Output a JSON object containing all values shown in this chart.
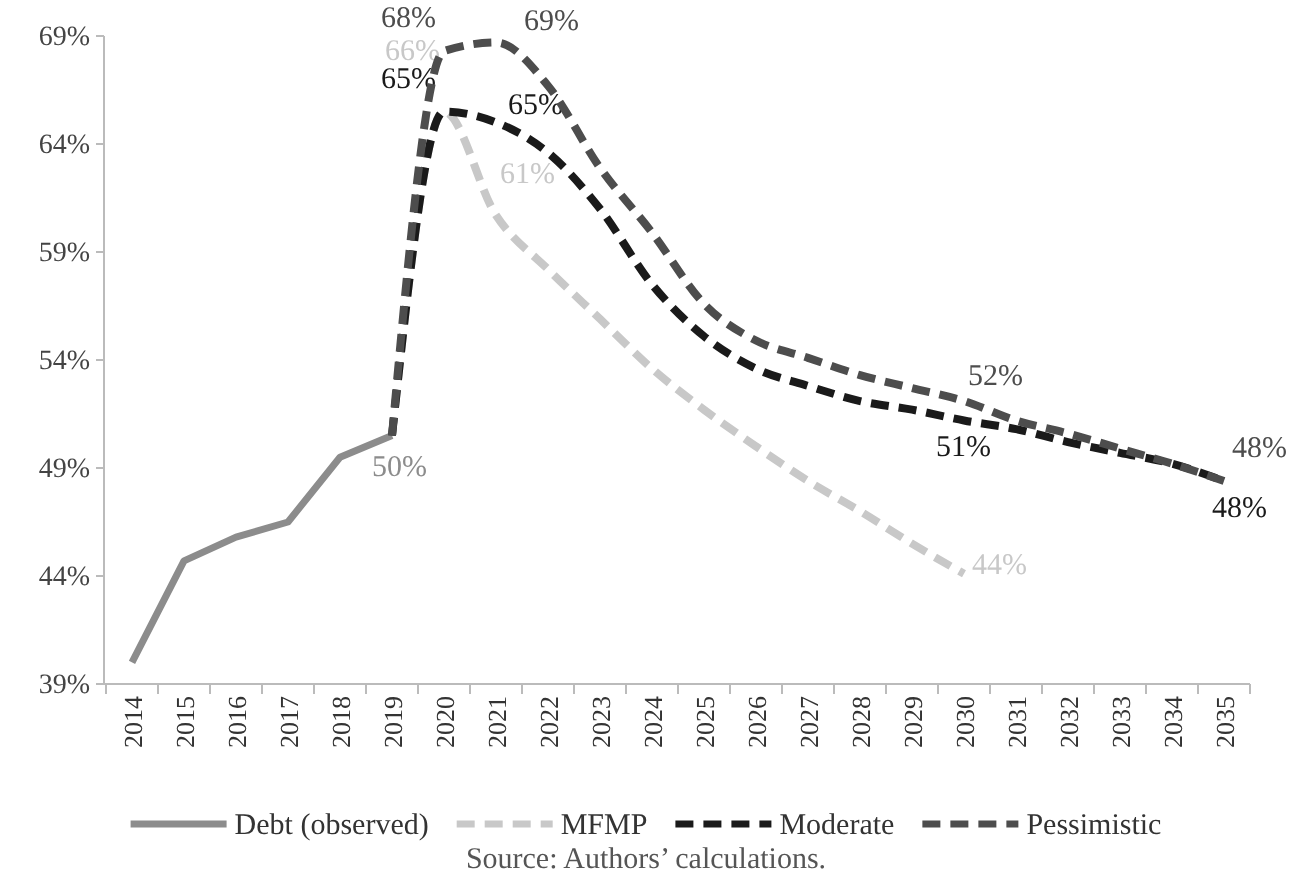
{
  "chart_data": {
    "type": "line",
    "categories": [
      "2014",
      "2015",
      "2016",
      "2017",
      "2018",
      "2019",
      "2020",
      "2021",
      "2022",
      "2023",
      "2024",
      "2025",
      "2026",
      "2027",
      "2028",
      "2029",
      "2030",
      "2031",
      "2032",
      "2033",
      "2034",
      "2035"
    ],
    "ylim": [
      39,
      69
    ],
    "yticks": [
      {
        "value": 39,
        "label": "39%"
      },
      {
        "value": 44,
        "label": "44%"
      },
      {
        "value": 49,
        "label": "49%"
      },
      {
        "value": 54,
        "label": "54%"
      },
      {
        "value": 59,
        "label": "59%"
      },
      {
        "value": 64,
        "label": "64%"
      },
      {
        "value": 69,
        "label": "69%"
      }
    ],
    "grid": false,
    "legend": "bottom",
    "series": [
      {
        "name": "Debt (observed)",
        "color": "#8c8c8c",
        "line_style": "solid",
        "values": [
          40.0,
          44.7,
          45.8,
          46.5,
          49.5,
          50.5,
          null,
          null,
          null,
          null,
          null,
          null,
          null,
          null,
          null,
          null,
          null,
          null,
          null,
          null,
          null,
          null
        ],
        "value_labels": [
          null,
          null,
          null,
          null,
          null,
          "50%",
          null,
          null,
          null,
          null,
          null,
          null,
          null,
          null,
          null,
          null,
          null,
          null,
          null,
          null,
          null,
          null
        ]
      },
      {
        "name": "MFMP",
        "color": "#c8c8c8",
        "line_style": "dashed",
        "values": [
          null,
          null,
          null,
          null,
          null,
          50.5,
          65.5,
          60.7,
          58.2,
          55.9,
          53.6,
          51.7,
          50.0,
          48.4,
          47.0,
          45.5,
          44.1,
          null,
          null,
          null,
          null,
          null
        ],
        "value_labels": [
          null,
          null,
          null,
          null,
          null,
          null,
          "66%",
          "61%",
          null,
          null,
          null,
          null,
          null,
          null,
          null,
          null,
          "44%",
          null,
          null,
          null,
          null,
          null
        ]
      },
      {
        "name": "Moderate",
        "color": "#1a1a1a",
        "line_style": "dashed",
        "values": [
          null,
          null,
          null,
          null,
          null,
          50.5,
          65.5,
          65.0,
          63.6,
          61.0,
          57.5,
          55.1,
          53.6,
          52.8,
          52.1,
          51.7,
          51.2,
          50.8,
          50.2,
          49.7,
          49.2,
          48.4
        ],
        "value_labels": [
          null,
          null,
          null,
          null,
          null,
          null,
          "65%",
          "65%",
          null,
          null,
          null,
          null,
          null,
          null,
          null,
          null,
          "51%",
          null,
          null,
          null,
          null,
          "48%"
        ]
      },
      {
        "name": "Pessimistic",
        "color": "#4d4d4d",
        "line_style": "dashed",
        "values": [
          null,
          null,
          null,
          null,
          null,
          50.5,
          68.3,
          68.7,
          66.7,
          62.9,
          59.9,
          56.6,
          54.9,
          54.1,
          53.3,
          52.7,
          52.1,
          51.2,
          50.6,
          49.9,
          49.2,
          48.4
        ],
        "value_labels": [
          null,
          null,
          null,
          null,
          null,
          null,
          "68%",
          "69%",
          null,
          null,
          null,
          null,
          null,
          null,
          null,
          null,
          "52%",
          null,
          null,
          null,
          null,
          "48%"
        ]
      }
    ],
    "annotations": [
      "Source: Authors’ calculations."
    ]
  }
}
